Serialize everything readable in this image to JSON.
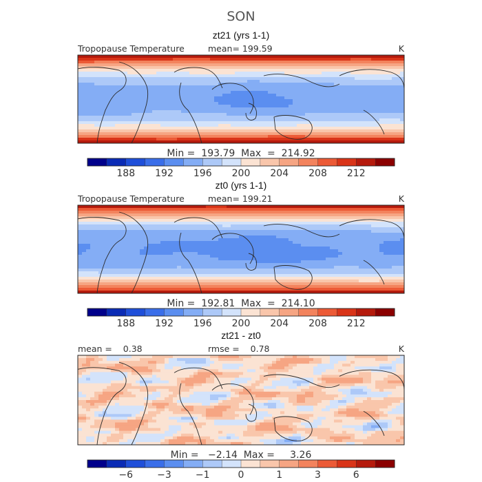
{
  "chart_data": {
    "type": "heatmap",
    "title": "SON",
    "panels": [
      {
        "subtitle": "zt21 (yrs 1-1)",
        "left_label": "Tropopause Temperature",
        "center_label": "mean= 199.59",
        "right_label": "K",
        "stats": "Min =  193.79  Max  =  214.92",
        "field": "tropopause_temperature",
        "tropical_min": 193.79,
        "polar_max": 214.92,
        "mean": 199.59,
        "colorbar": {
          "colors": [
            "#00008b",
            "#0a2bb5",
            "#1f4fd9",
            "#3a6ee9",
            "#5b8ef0",
            "#84adf5",
            "#adc9f8",
            "#d3e3fb",
            "#fbe3d3",
            "#f9c6ab",
            "#f6a583",
            "#f3835d",
            "#ec5a36",
            "#d93418",
            "#b51a0c",
            "#8b0000"
          ],
          "levels": [
            186,
            188,
            190,
            192,
            194,
            196,
            198,
            200,
            202,
            204,
            206,
            208,
            210,
            212,
            214
          ],
          "tick_labels": [
            "188",
            "192",
            "196",
            "200",
            "204",
            "208",
            "212"
          ],
          "tick_values": [
            188,
            192,
            196,
            200,
            204,
            208,
            212
          ]
        }
      },
      {
        "subtitle": "zt0 (yrs 1-1)",
        "left_label": "Tropopause Temperature",
        "center_label": "mean= 199.21",
        "right_label": "K",
        "stats": "Min =  192.81  Max  =  214.10",
        "field": "tropopause_temperature",
        "tropical_min": 192.81,
        "polar_max": 214.1,
        "mean": 199.21,
        "colorbar": {
          "colors": [
            "#00008b",
            "#0a2bb5",
            "#1f4fd9",
            "#3a6ee9",
            "#5b8ef0",
            "#84adf5",
            "#adc9f8",
            "#d3e3fb",
            "#fbe3d3",
            "#f9c6ab",
            "#f6a583",
            "#f3835d",
            "#ec5a36",
            "#d93418",
            "#b51a0c",
            "#8b0000"
          ],
          "levels": [
            186,
            188,
            190,
            192,
            194,
            196,
            198,
            200,
            202,
            204,
            206,
            208,
            210,
            212,
            214
          ],
          "tick_labels": [
            "188",
            "192",
            "196",
            "200",
            "204",
            "208",
            "212"
          ],
          "tick_values": [
            188,
            192,
            196,
            200,
            204,
            208,
            212
          ]
        }
      },
      {
        "subtitle": "zt21 - zt0",
        "left_label": "mean =    0.38",
        "center_label": "rmse =    0.78",
        "right_label": "K",
        "stats": "Min =   −2.14  Max =     3.26",
        "field": "difference",
        "mean": 0.38,
        "rmse": 0.78,
        "min": -2.14,
        "max": 3.26,
        "colorbar": {
          "colors": [
            "#00008b",
            "#0a2bb5",
            "#1f4fd9",
            "#3a6ee9",
            "#5b8ef0",
            "#84adf5",
            "#adc9f8",
            "#d3e3fb",
            "#fbe3d3",
            "#f9c6ab",
            "#f6a583",
            "#f3835d",
            "#ec5a36",
            "#d93418",
            "#b51a0c",
            "#8b0000"
          ],
          "levels": [
            -8,
            -6,
            -4,
            -3,
            -2,
            -1,
            -0.5,
            0,
            0.5,
            1,
            2,
            3,
            4,
            6,
            8
          ],
          "tick_labels": [
            "−6",
            "−3",
            "−1",
            "0",
            "1",
            "3",
            "6"
          ],
          "tick_values": [
            -6,
            -3,
            -1,
            0,
            1,
            3,
            6
          ]
        }
      }
    ]
  }
}
